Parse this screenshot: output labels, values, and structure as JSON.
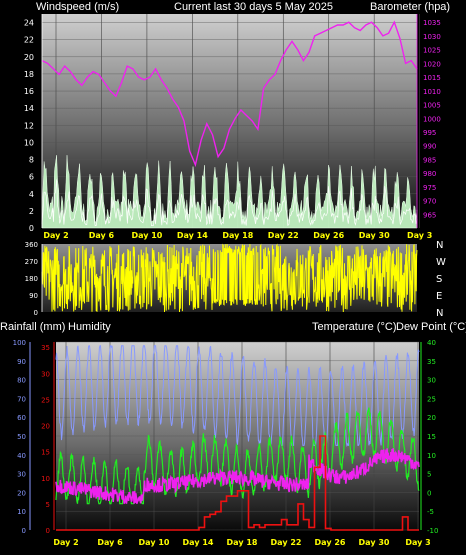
{
  "header": {
    "left_label": "Windspeed (m/s)",
    "title": "Current last 30 days 5 May 2025",
    "right_label": "Barometer (hpa)"
  },
  "lower_header": {
    "rain_label": "Rainfall (mm)",
    "humidity_label": "Humidity",
    "temp_label": "Temperature (°C)",
    "dew_label": "Dew Point (°C)"
  },
  "colors": {
    "wind": "#ffffff",
    "gust_fill": "#ccffcc",
    "barometer": "#ee22ee",
    "direction": "#ffff00",
    "humidity": "#8899ff",
    "temperature": "#22ee22",
    "dewpoint": "#ee22ee",
    "rain": "#ee1111",
    "day_labels": "#ffff00"
  },
  "chart_data": [
    {
      "type": "area",
      "series_kind": "wind_and_barometer",
      "x_labels": [
        "Day 2",
        "Day 6",
        "Day 10",
        "Day 14",
        "Day 18",
        "Day 22",
        "Day 26",
        "Day 30",
        "Day 3"
      ],
      "x_range_days": [
        0,
        33
      ],
      "left_axis": {
        "ticks": [
          0,
          2,
          4,
          6,
          8,
          10,
          12,
          14,
          16,
          18,
          20,
          22,
          24
        ],
        "ylim": [
          0,
          25
        ]
      },
      "right_axis": {
        "ticks": [
          965,
          970,
          975,
          980,
          985,
          990,
          995,
          1000,
          1005,
          1010,
          1015,
          1020,
          1025,
          1030,
          1035
        ],
        "ylim": [
          960,
          1038
        ]
      },
      "barometer": {
        "x": [
          0,
          0.5,
          1,
          1.5,
          2,
          2.5,
          3,
          3.5,
          4,
          4.5,
          5,
          5.5,
          6,
          6.5,
          7,
          7.5,
          8,
          8.5,
          9,
          9.5,
          10,
          10.5,
          11,
          11.5,
          12,
          12.5,
          13,
          13.5,
          14,
          14.5,
          15,
          15.5,
          16,
          16.5,
          17,
          17.5,
          18,
          18.5,
          19,
          19.5,
          20,
          20.5,
          21,
          21.5,
          22,
          22.5,
          23,
          23.5,
          24,
          24.5,
          25,
          25.5,
          26,
          26.5,
          27,
          27.5,
          28,
          28.5,
          29,
          29.5,
          30,
          30.5,
          31,
          31.5,
          32,
          32.5,
          33
        ],
        "y": [
          1021,
          1020,
          1018,
          1016,
          1019,
          1017,
          1014,
          1012,
          1015,
          1017,
          1016,
          1013,
          1010,
          1008,
          1013,
          1019,
          1018,
          1015,
          1014,
          1015,
          1018,
          1014,
          1011,
          1007,
          1004,
          999,
          988,
          983,
          992,
          998,
          994,
          986,
          989,
          996,
          1000,
          1003,
          1001,
          999,
          996,
          1011,
          1014,
          1016,
          1021,
          1025,
          1028,
          1025,
          1021,
          1024,
          1030,
          1031,
          1032,
          1033,
          1034,
          1034,
          1035,
          1033,
          1032,
          1034,
          1035,
          1033,
          1030,
          1031,
          1035,
          1029,
          1020,
          1021,
          1018
        ]
      },
      "wind_avg_approx": "0-6 m/s, mean about 2.5",
      "wind_gust_approx": "0-9 m/s"
    },
    {
      "type": "area",
      "series_kind": "wind_direction",
      "left_axis": {
        "ticks": [
          0,
          90,
          180,
          270,
          360
        ],
        "ylim": [
          0,
          360
        ]
      },
      "right_labels": [
        "N",
        "W",
        "S",
        "E",
        "N"
      ],
      "direction_approx": "variable 0-360 degrees"
    },
    {
      "type": "line",
      "series_kind": "rain_humidity_temperature",
      "x_labels": [
        "Day 2",
        "Day 6",
        "Day 10",
        "Day 14",
        "Day 18",
        "Day 22",
        "Day 26",
        "Day 30",
        "Day 3"
      ],
      "rain_axis": {
        "ticks": [
          0,
          5,
          10,
          15,
          20,
          25,
          30,
          35
        ],
        "ylim": [
          0,
          36
        ]
      },
      "humidity_axis": {
        "ticks": [
          0,
          10,
          20,
          30,
          40,
          50,
          60,
          70,
          80,
          90,
          100
        ],
        "ylim": [
          0,
          100
        ]
      },
      "temp_axis": {
        "ticks": [
          -10,
          -5,
          0,
          5,
          10,
          15,
          20,
          25,
          30,
          35,
          40
        ],
        "ylim": [
          -10,
          40
        ]
      },
      "rain_cumulative": {
        "x": [
          0,
          12,
          13,
          13.5,
          14,
          14.5,
          15,
          15.5,
          16,
          16.5,
          17,
          17.5,
          18,
          18.5,
          19,
          19.5,
          20,
          20.5,
          21,
          21.5,
          22,
          22.5,
          23,
          23.5,
          24,
          24.5,
          25,
          30,
          31,
          31.5,
          32,
          33
        ],
        "y": [
          0,
          0,
          0.5,
          2.5,
          3,
          3.5,
          5.5,
          6.5,
          6.5,
          7.5,
          7.5,
          0.5,
          1,
          0.5,
          1,
          1,
          1,
          2,
          1,
          1,
          5,
          2,
          0.5,
          12,
          18,
          0.3,
          0,
          0,
          0,
          2.5,
          0,
          0
        ]
      },
      "humidity_range_pct": [
        45,
        98
      ],
      "temperature_range_c": [
        -3,
        27
      ],
      "dewpoint_range_c": [
        -3,
        14
      ]
    }
  ]
}
